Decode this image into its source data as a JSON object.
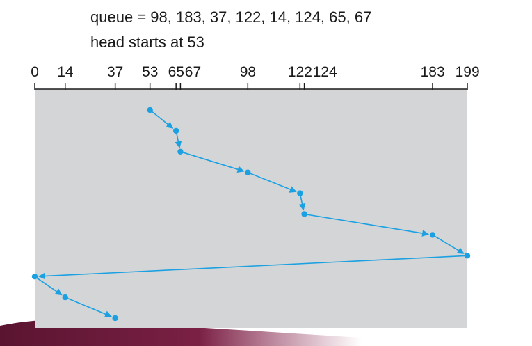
{
  "header": {
    "queue_label": "queue",
    "queue_values": "98, 183, 37, 122, 14, 124, 65, 67",
    "head_text": "head starts at 53"
  },
  "chart_data": {
    "type": "line",
    "axis": {
      "min": 0,
      "max": 199,
      "tick_values": [
        0,
        14,
        37,
        53,
        65,
        67,
        98,
        122,
        124,
        183,
        199
      ],
      "tick_labels": [
        "0",
        "14",
        "37",
        "53",
        "65",
        "67",
        "98",
        "122",
        "124",
        "183",
        "199"
      ]
    },
    "series": [
      {
        "sequence": [
          53,
          65,
          67,
          98,
          122,
          124,
          183,
          199,
          0,
          14,
          37
        ]
      }
    ],
    "colors": {
      "path": "#1ba1e2",
      "panel": "#d4d5d7",
      "axis": "#1a1a1a",
      "accent": "#6b1a33"
    }
  }
}
